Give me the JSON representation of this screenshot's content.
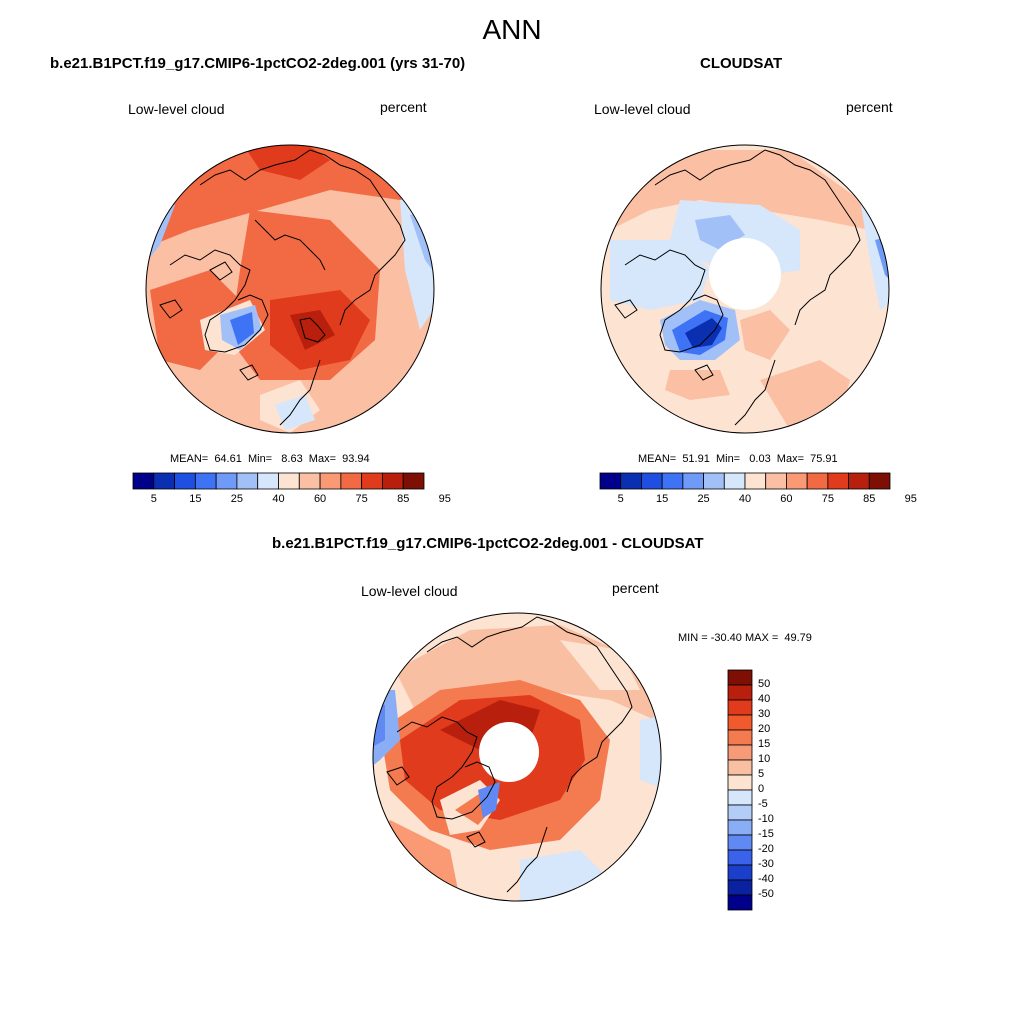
{
  "main_title": "ANN",
  "panels": [
    {
      "title": "b.e21.B1PCT.f19_g17.CMIP6-1pctCO2-2deg.001 (yrs 31-70)",
      "left_label": "Low-level cloud",
      "right_label": "percent",
      "stats": "MEAN=  64.61  Min=   8.63  Max=  93.94",
      "colorbar_ticks": [
        "5",
        "15",
        "25",
        "40",
        "60",
        "75",
        "85",
        "95"
      ]
    },
    {
      "title": "CLOUDSAT",
      "left_label": "Low-level cloud",
      "right_label": "percent",
      "stats": "MEAN=  51.91  Min=   0.03  Max=  75.91",
      "colorbar_ticks": [
        "5",
        "15",
        "25",
        "40",
        "60",
        "75",
        "85",
        "95"
      ]
    },
    {
      "title": "b.e21.B1PCT.f19_g17.CMIP6-1pctCO2-2deg.001 - CLOUDSAT",
      "left_label": "Low-level cloud",
      "right_label": "percent",
      "stats": "MIN = -30.40 MAX =  49.79",
      "colorbar_ticks": [
        "50",
        "40",
        "30",
        "20",
        "15",
        "10",
        "5",
        "0",
        "-5",
        "-10",
        "-15",
        "-20",
        "-30",
        "-40",
        "-50"
      ]
    }
  ],
  "colors": {
    "abs_scale": [
      "#00008a",
      "#0a2fb0",
      "#1f4fe0",
      "#3f73f5",
      "#6f9af7",
      "#a2c0f8",
      "#d6e6fb",
      "#fde3d2",
      "#fbbfa3",
      "#f99a74",
      "#f26a43",
      "#e03b1c",
      "#b81f0c",
      "#7d0f05"
    ],
    "diff_scale": [
      "#7d0f05",
      "#b81f0c",
      "#e03b1c",
      "#f05a2c",
      "#f47a50",
      "#f69a78",
      "#f9bfa2",
      "#fde3d2",
      "#d6e6fb",
      "#b3cdf8",
      "#8aaef6",
      "#6089f3",
      "#3a62ea",
      "#1c3fcb",
      "#0a22a0",
      "#00008a"
    ]
  }
}
